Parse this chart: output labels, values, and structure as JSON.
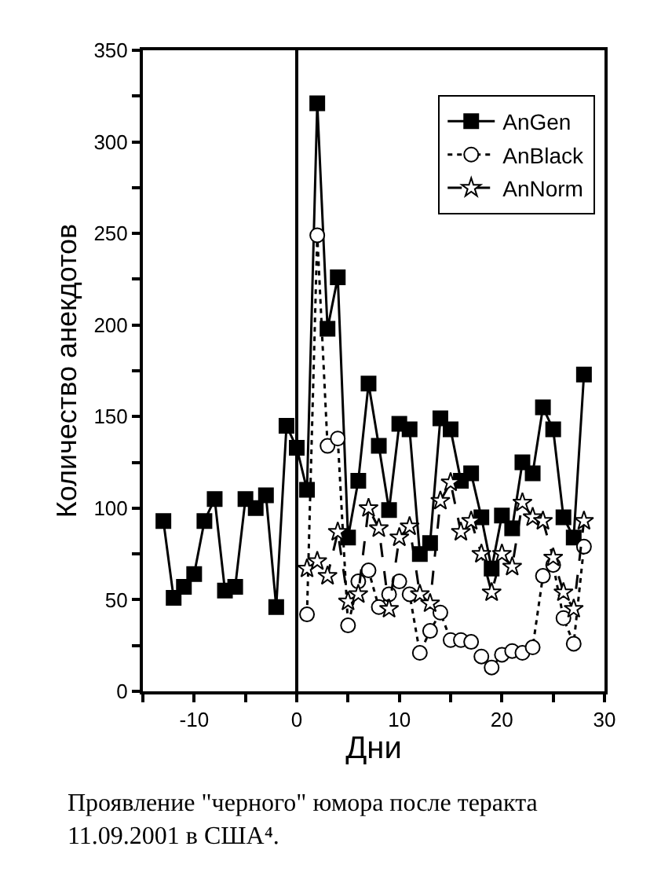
{
  "chart_data": {
    "type": "line",
    "xlabel": "Дни",
    "ylabel": "Количество анекдотов",
    "annotations": [
      "Проявление \"черного\" юмора после теракта 11.09.2001 в США⁴."
    ],
    "series": [
      {
        "name": "AnGen",
        "color": "#000000",
        "marker": "square",
        "line_style": "solid",
        "x": [
          -13,
          -12,
          -11,
          -10,
          -9,
          -8,
          -7,
          -6,
          -5,
          -4,
          -3,
          -2,
          -1,
          0,
          1,
          2,
          3,
          4,
          5,
          6,
          7,
          8,
          9,
          10,
          11,
          12,
          13,
          14,
          15,
          16,
          17,
          18,
          19,
          20,
          21,
          22,
          23,
          24,
          25,
          26,
          27,
          28
        ],
        "values": [
          93,
          51,
          57,
          64,
          93,
          105,
          55,
          57,
          105,
          100,
          107,
          46,
          145,
          133,
          110,
          321,
          198,
          226,
          84,
          115,
          168,
          134,
          99,
          146,
          143,
          75,
          81,
          149,
          143,
          115,
          119,
          95,
          67,
          96,
          89,
          125,
          119,
          155,
          143,
          95,
          84,
          173
        ]
      },
      {
        "name": "AnBlack",
        "color": "#000000",
        "marker": "circle",
        "line_style": "dotted",
        "x": [
          1,
          2,
          3,
          4,
          5,
          6,
          7,
          8,
          9,
          10,
          11,
          12,
          13,
          14,
          15,
          16,
          17,
          18,
          19,
          20,
          21,
          22,
          23,
          24,
          25,
          26,
          27,
          28
        ],
        "values": [
          42,
          249,
          134,
          138,
          36,
          60,
          66,
          46,
          53,
          60,
          53,
          21,
          33,
          43,
          28,
          28,
          27,
          19,
          13,
          20,
          22,
          21,
          24,
          63,
          69,
          40,
          26,
          79
        ]
      },
      {
        "name": "AnNorm",
        "color": "#000000",
        "marker": "star",
        "line_style": "dashed",
        "x": [
          1,
          2,
          3,
          4,
          5,
          6,
          7,
          8,
          9,
          10,
          11,
          12,
          13,
          14,
          15,
          16,
          17,
          18,
          19,
          20,
          21,
          22,
          23,
          24,
          25,
          26,
          27,
          28
        ],
        "values": [
          67,
          71,
          63,
          87,
          49,
          53,
          100,
          89,
          45,
          84,
          90,
          53,
          48,
          104,
          114,
          87,
          93,
          75,
          54,
          75,
          68,
          103,
          95,
          93,
          73,
          54,
          45,
          93
        ]
      }
    ],
    "xlim": [
      -15,
      30
    ],
    "xticks": [
      {
        "value": -15,
        "label": null
      },
      -10,
      {
        "value": -5,
        "label": null
      },
      0,
      {
        "value": 5,
        "label": null
      },
      10,
      {
        "value": 15,
        "label": null
      },
      20,
      {
        "value": 25,
        "label": null
      },
      30
    ],
    "ylim": [
      0,
      350
    ],
    "yticks": [
      0,
      {
        "value": 25,
        "label": null
      },
      50,
      {
        "value": 75,
        "label": null
      },
      100,
      {
        "value": 125,
        "label": null
      },
      150,
      {
        "value": 175,
        "label": null
      },
      200,
      {
        "value": 225,
        "label": null
      },
      250,
      {
        "value": 275,
        "label": null
      },
      300,
      {
        "value": 325,
        "label": null
      },
      350
    ],
    "ref_lines": [
      {
        "axis": "x",
        "value": 0,
        "color": "#000000"
      }
    ],
    "legend": "top right"
  }
}
